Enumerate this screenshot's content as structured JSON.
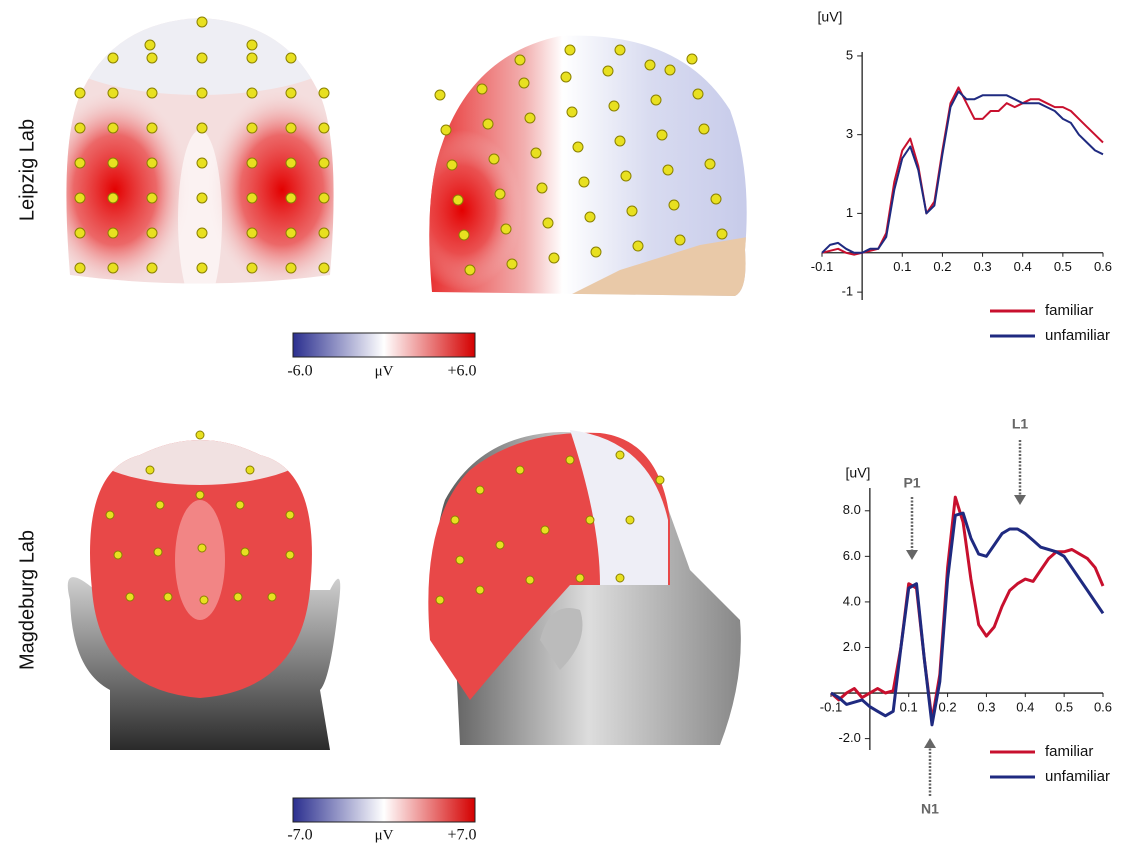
{
  "row_labels": [
    "Leipzig Lab",
    "Magdeburg Lab"
  ],
  "colorbars": [
    {
      "label": "μV",
      "ticks": [
        {
          "value": -6,
          "label": "-6.0"
        },
        {
          "value": 6,
          "label": "+6.0"
        }
      ]
    },
    {
      "label": "μV",
      "ticks": [
        {
          "value": -7,
          "label": "-7.0"
        },
        {
          "value": 7,
          "label": "+7.0"
        }
      ]
    }
  ],
  "chart_data": [
    {
      "type": "line",
      "y_label": "[uV]",
      "x": [
        -0.1,
        -0.08,
        -0.06,
        -0.04,
        -0.02,
        0,
        0.02,
        0.04,
        0.06,
        0.08,
        0.1,
        0.12,
        0.14,
        0.16,
        0.18,
        0.2,
        0.22,
        0.24,
        0.26,
        0.28,
        0.3,
        0.32,
        0.34,
        0.36,
        0.38,
        0.4,
        0.42,
        0.44,
        0.46,
        0.48,
        0.5,
        0.52,
        0.54,
        0.56,
        0.58,
        0.6
      ],
      "series": [
        {
          "name": "familiar",
          "color": "#c8102e",
          "values": [
            0,
            0.05,
            0.1,
            0,
            -0.05,
            0,
            0.05,
            0.1,
            0.5,
            1.8,
            2.6,
            2.9,
            2.2,
            1.0,
            1.3,
            2.6,
            3.8,
            4.2,
            3.8,
            3.4,
            3.4,
            3.6,
            3.6,
            3.8,
            3.7,
            3.8,
            3.9,
            3.9,
            3.8,
            3.7,
            3.7,
            3.6,
            3.4,
            3.2,
            3.0,
            2.8
          ]
        },
        {
          "name": "unfamiliar",
          "color": "#1f2a80",
          "values": [
            0,
            0.2,
            0.25,
            0.1,
            0,
            0,
            0.1,
            0.1,
            0.4,
            1.6,
            2.4,
            2.7,
            2.1,
            1.0,
            1.2,
            2.5,
            3.7,
            4.1,
            3.9,
            3.9,
            4.0,
            4.0,
            4.0,
            4.0,
            3.9,
            3.8,
            3.8,
            3.8,
            3.7,
            3.6,
            3.4,
            3.3,
            3.0,
            2.8,
            2.6,
            2.5
          ]
        }
      ],
      "xlim": [
        -0.1,
        0.6
      ],
      "xticks": [
        -0.1,
        0.1,
        0.2,
        0.3,
        0.4,
        0.5,
        0.6
      ],
      "ylim": [
        -1.2,
        5.1
      ],
      "yticks": [
        5,
        3,
        1,
        -1
      ],
      "legend": "lower right"
    },
    {
      "type": "line",
      "y_label": "[uV]",
      "x": [
        -0.1,
        -0.08,
        -0.06,
        -0.04,
        -0.02,
        0,
        0.02,
        0.04,
        0.06,
        0.08,
        0.1,
        0.12,
        0.14,
        0.16,
        0.18,
        0.2,
        0.22,
        0.24,
        0.26,
        0.28,
        0.3,
        0.32,
        0.34,
        0.36,
        0.38,
        0.4,
        0.42,
        0.44,
        0.46,
        0.48,
        0.5,
        0.52,
        0.54,
        0.56,
        0.58,
        0.6
      ],
      "series": [
        {
          "name": "familiar",
          "color": "#c8102e",
          "values": [
            0,
            -0.3,
            0,
            0.2,
            -0.2,
            0,
            0.2,
            0,
            0.1,
            2.0,
            4.8,
            4.6,
            1.5,
            -1.2,
            0.8,
            5.5,
            8.6,
            7.5,
            5.0,
            3.0,
            2.5,
            2.9,
            3.8,
            4.5,
            4.8,
            5.0,
            4.9,
            5.4,
            5.9,
            6.2,
            6.2,
            6.3,
            6.1,
            5.9,
            5.5,
            4.7
          ]
        },
        {
          "name": "unfamiliar",
          "color": "#1f2a80",
          "values": [
            0,
            -0.2,
            -0.5,
            -0.4,
            -0.3,
            -0.6,
            -0.8,
            -1.0,
            -0.8,
            2.0,
            4.6,
            4.8,
            1.5,
            -1.4,
            0.5,
            5.0,
            7.8,
            7.9,
            6.8,
            6.1,
            6.0,
            6.5,
            7.0,
            7.2,
            7.2,
            7.0,
            6.7,
            6.4,
            6.3,
            6.2,
            6.0,
            5.5,
            5.0,
            4.5,
            4.0,
            3.5
          ]
        }
      ],
      "xlim": [
        -0.1,
        0.6
      ],
      "xticks": [
        -0.1,
        0.1,
        0.2,
        0.3,
        0.4,
        0.5,
        0.6
      ],
      "ylim": [
        -2.5,
        9
      ],
      "yticks": [
        {
          "value": 8,
          "label": "8.0"
        },
        {
          "value": 6,
          "label": "6.0"
        },
        {
          "value": 4,
          "label": "4.0"
        },
        {
          "value": 2,
          "label": "2.0"
        },
        {
          "value": -2,
          "label": "-2.0"
        }
      ],
      "annotations": [
        "P1",
        "N1",
        "L1"
      ],
      "legend": "lower right"
    }
  ]
}
